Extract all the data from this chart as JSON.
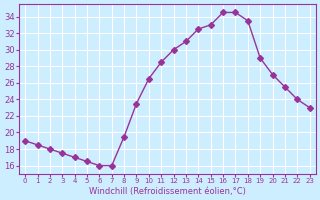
{
  "x": [
    0,
    1,
    2,
    3,
    4,
    5,
    6,
    7,
    8,
    9,
    10,
    11,
    12,
    13,
    14,
    15,
    16,
    17,
    18,
    19,
    20,
    21,
    22,
    23
  ],
  "y": [
    19,
    18.5,
    18,
    17.5,
    17,
    16.5,
    16,
    16,
    19.5,
    23.5,
    26.5,
    28.5,
    30,
    31,
    32.5,
    33,
    34.5,
    34.5,
    33.5,
    29,
    27,
    25.5,
    24,
    23
  ],
  "line_color": "#993399",
  "marker": "D",
  "marker_size": 3,
  "bg_color": "#cceeff",
  "grid_color": "#ffffff",
  "xlabel": "Windchill (Refroidissement éolien,°C)",
  "xlabel_color": "#993399",
  "tick_color": "#993399",
  "ylim": [
    15,
    35.5
  ],
  "xlim": [
    -0.5,
    23.5
  ],
  "yticks": [
    16,
    18,
    20,
    22,
    24,
    26,
    28,
    30,
    32,
    34
  ],
  "xticks": [
    0,
    1,
    2,
    3,
    4,
    5,
    6,
    7,
    8,
    9,
    10,
    11,
    12,
    13,
    14,
    15,
    16,
    17,
    18,
    19,
    20,
    21,
    22,
    23
  ]
}
